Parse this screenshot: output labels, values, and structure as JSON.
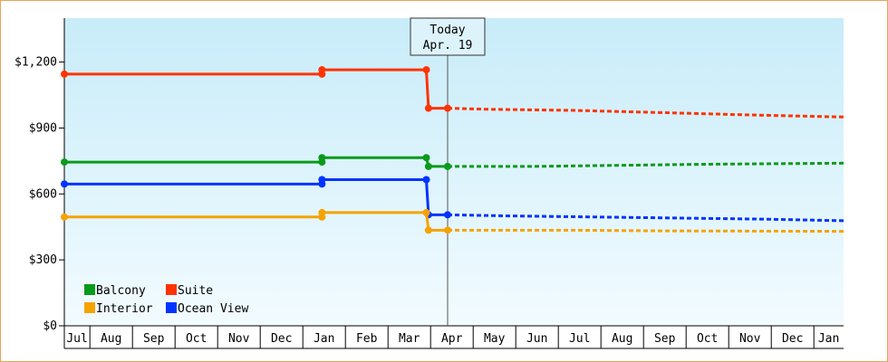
{
  "colors": {
    "balcony": "#0a9a1a",
    "suite": "#ff3300",
    "interior": "#f5a300",
    "ocean_view": "#0033ff",
    "frame_border": "#e8a25a",
    "plot_bg_top": "#c8ecf9",
    "plot_bg_bottom": "#f2fbff"
  },
  "chart_data": {
    "type": "line",
    "title": "",
    "xlabel": "",
    "ylabel": "",
    "ylim": [
      0,
      1400
    ],
    "y_ticks": [
      {
        "value": 0,
        "label": "$0"
      },
      {
        "value": 300,
        "label": "$300"
      },
      {
        "value": 600,
        "label": "$600"
      },
      {
        "value": 900,
        "label": "$900"
      },
      {
        "value": 1200,
        "label": "$1,200"
      }
    ],
    "x_tick_labels": [
      "Jul",
      "Aug",
      "Sep",
      "Oct",
      "Nov",
      "Dec",
      "Jan",
      "Feb",
      "Mar",
      "Apr",
      "May",
      "Jun",
      "Jul",
      "Aug",
      "Sep",
      "Oct",
      "Nov",
      "Dec",
      "Jan"
    ],
    "x_range_months": [
      0,
      18.3
    ],
    "today": {
      "label_line1": "Today",
      "label_line2": "Apr. 19",
      "x": 9.0
    },
    "grid": false,
    "legend_position": "bottom-left",
    "series": [
      {
        "name": "Suite",
        "color_key": "suite",
        "history": [
          [
            0.0,
            1145
          ],
          [
            6.05,
            1145
          ],
          [
            6.05,
            1165
          ],
          [
            8.5,
            1165
          ],
          [
            8.55,
            990
          ],
          [
            9.0,
            990
          ]
        ],
        "markers": [
          [
            0.0,
            1145
          ],
          [
            6.05,
            1145
          ],
          [
            6.05,
            1165
          ],
          [
            8.5,
            1165
          ],
          [
            8.55,
            990
          ],
          [
            9.0,
            990
          ]
        ],
        "forecast": [
          [
            9.0,
            990
          ],
          [
            10.0,
            985
          ],
          [
            12.0,
            980
          ],
          [
            14.0,
            970
          ],
          [
            16.0,
            960
          ],
          [
            18.3,
            950
          ]
        ]
      },
      {
        "name": "Balcony",
        "color_key": "balcony",
        "history": [
          [
            0.0,
            745
          ],
          [
            6.05,
            745
          ],
          [
            6.05,
            765
          ],
          [
            8.5,
            765
          ],
          [
            8.55,
            725
          ],
          [
            9.0,
            725
          ]
        ],
        "markers": [
          [
            0.0,
            745
          ],
          [
            6.05,
            745
          ],
          [
            6.05,
            765
          ],
          [
            8.5,
            765
          ],
          [
            8.55,
            725
          ],
          [
            9.0,
            725
          ]
        ],
        "forecast": [
          [
            9.0,
            725
          ],
          [
            11.0,
            725
          ],
          [
            13.0,
            730
          ],
          [
            15.0,
            735
          ],
          [
            18.3,
            740
          ]
        ]
      },
      {
        "name": "Ocean View",
        "color_key": "ocean_view",
        "history": [
          [
            0.0,
            645
          ],
          [
            6.05,
            645
          ],
          [
            6.05,
            665
          ],
          [
            8.5,
            665
          ],
          [
            8.55,
            505
          ],
          [
            9.0,
            505
          ]
        ],
        "markers": [
          [
            0.0,
            645
          ],
          [
            6.05,
            645
          ],
          [
            6.05,
            665
          ],
          [
            8.5,
            665
          ],
          [
            8.55,
            505
          ],
          [
            9.0,
            505
          ]
        ],
        "forecast": [
          [
            9.0,
            505
          ],
          [
            10.5,
            500
          ],
          [
            12.5,
            495
          ],
          [
            14.5,
            490
          ],
          [
            16.5,
            485
          ],
          [
            18.3,
            478
          ]
        ]
      },
      {
        "name": "Interior",
        "color_key": "interior",
        "history": [
          [
            0.0,
            495
          ],
          [
            6.05,
            495
          ],
          [
            6.05,
            515
          ],
          [
            8.5,
            515
          ],
          [
            8.55,
            435
          ],
          [
            9.0,
            435
          ]
        ],
        "markers": [
          [
            0.0,
            495
          ],
          [
            6.05,
            495
          ],
          [
            6.05,
            515
          ],
          [
            8.5,
            515
          ],
          [
            8.55,
            435
          ],
          [
            9.0,
            435
          ]
        ],
        "forecast": [
          [
            9.0,
            435
          ],
          [
            12.0,
            435
          ],
          [
            14.0,
            432
          ],
          [
            18.3,
            430
          ]
        ]
      }
    ],
    "legend": [
      {
        "label": "Balcony",
        "color_key": "balcony"
      },
      {
        "label": "Suite",
        "color_key": "suite"
      },
      {
        "label": "Interior",
        "color_key": "interior"
      },
      {
        "label": "Ocean View",
        "color_key": "ocean_view"
      }
    ]
  }
}
